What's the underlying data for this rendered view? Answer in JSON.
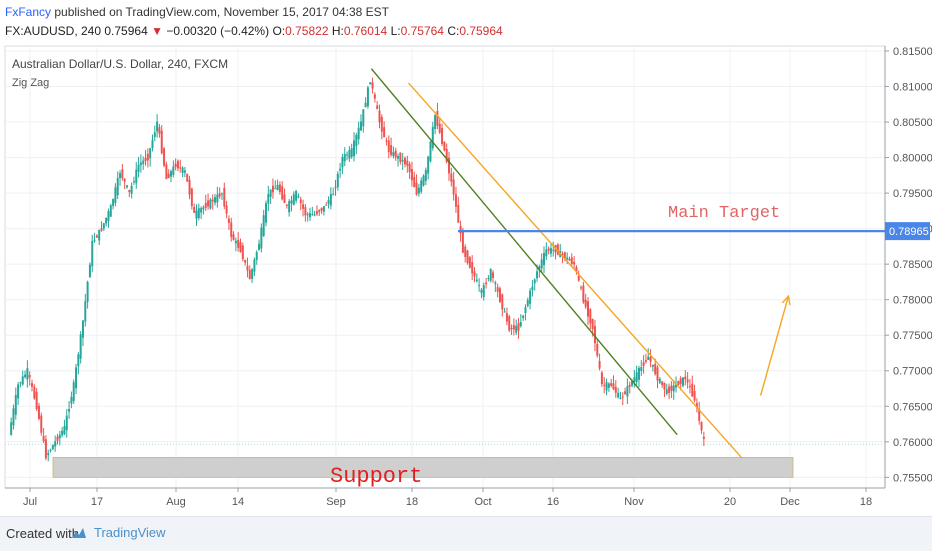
{
  "header": {
    "author": "FxFancy",
    "published_text": "published on TradingView.com, November 15, 2017 04:38 EST",
    "symbol": "FX:AUDUSD, 240",
    "last": "0.75964",
    "down_arrow": "▼",
    "change": "−0.00320 (−0.42%)",
    "o_label": "O:",
    "o_value": "0.75822",
    "h_label": "H:",
    "h_value": "0.76014",
    "l_label": "L:",
    "l_value": "0.75764",
    "c_label": "C:",
    "c_value": "0.75964"
  },
  "footer": {
    "created_with": "Created with",
    "brand": "TradingView",
    "logo_icon": "tradingview-cloud-icon"
  },
  "colors": {
    "up_candle": "#26a69a",
    "down_candle": "#ef5350",
    "trendline_green": "#4f7f1f",
    "trendline_orange": "#f5a623",
    "target_line": "#4a86e8",
    "target_text": "#e06666",
    "support_text": "#e02020",
    "support_zone": "#cfcfcf"
  },
  "chart_data": {
    "type": "candlestick",
    "title": "Australian Dollar/U.S. Dollar, 240, FXCM",
    "indicator": "Zig Zag",
    "x_tick_labels": [
      "Jul",
      "17",
      "Aug",
      "14",
      "Sep",
      "18",
      "Oct",
      "16",
      "Nov",
      "20",
      "Dec",
      "18"
    ],
    "y_ticks": [
      "0.81500",
      "0.81000",
      "0.80500",
      "0.80000",
      "0.79500",
      "0.79000",
      "0.78500",
      "0.78000",
      "0.77500",
      "0.77000",
      "0.76500",
      "0.76000",
      "0.75500"
    ],
    "ylim": [
      0.7535,
      0.8157
    ],
    "current_price": 0.75964,
    "closes": [
      0.761,
      0.768,
      0.77,
      0.765,
      0.758,
      0.76,
      0.762,
      0.768,
      0.777,
      0.788,
      0.79,
      0.793,
      0.798,
      0.795,
      0.799,
      0.8,
      0.805,
      0.797,
      0.799,
      0.798,
      0.792,
      0.793,
      0.794,
      0.795,
      0.789,
      0.787,
      0.783,
      0.788,
      0.795,
      0.796,
      0.793,
      0.795,
      0.792,
      0.792,
      0.793,
      0.795,
      0.8,
      0.801,
      0.805,
      0.811,
      0.805,
      0.801,
      0.8,
      0.799,
      0.795,
      0.798,
      0.806,
      0.801,
      0.795,
      0.787,
      0.784,
      0.781,
      0.784,
      0.78,
      0.776,
      0.776,
      0.78,
      0.784,
      0.787,
      0.787,
      0.786,
      0.785,
      0.78,
      0.776,
      0.768,
      0.768,
      0.766,
      0.768,
      0.77,
      0.772,
      0.769,
      0.767,
      0.768,
      0.769,
      0.766,
      0.76
    ],
    "annotations": [
      {
        "type": "text",
        "text": "Main Target",
        "price": 0.795
      },
      {
        "type": "horizontal_line",
        "price_label": "0.78965",
        "price": 0.78965
      },
      {
        "type": "text",
        "text": "Support"
      },
      {
        "type": "zone",
        "from": 0.755,
        "to": 0.7578
      },
      {
        "type": "trendline",
        "color": "green",
        "from": {
          "x_index": 39,
          "price": 0.8125
        },
        "to": {
          "x_index": 72,
          "price": 0.761
        }
      },
      {
        "type": "trendline",
        "color": "orange",
        "from": {
          "x_index": 43,
          "price": 0.8105
        },
        "to": {
          "x_index": 79,
          "price": 0.7577
        }
      },
      {
        "type": "arrow",
        "direction": "up",
        "from": {
          "x_index": 81,
          "price": 0.7665
        },
        "to": {
          "x_index": 84,
          "price": 0.7805
        }
      }
    ],
    "grid": true
  }
}
